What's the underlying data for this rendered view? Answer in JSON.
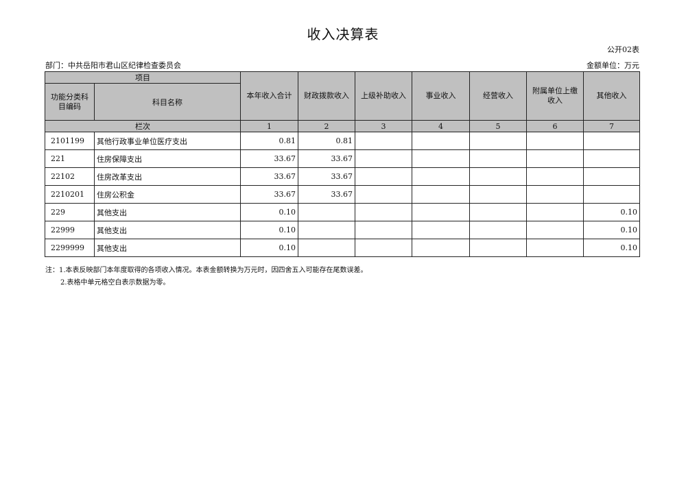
{
  "title": "收入决算表",
  "form_no": "公开02表",
  "department": "部门：中共岳阳市君山区纪律检查委员会",
  "unit": "金额单位：万元",
  "header": {
    "item": "项目",
    "code": "功能分类科目编码",
    "name": "科目名称",
    "column_index": "栏次",
    "columns": [
      "本年收入合计",
      "财政拨款收入",
      "上级补助收入",
      "事业收入",
      "经营收入",
      "附属单位上缴收入",
      "其他收入"
    ],
    "indices": [
      "1",
      "2",
      "3",
      "4",
      "5",
      "6",
      "7"
    ]
  },
  "rows": [
    {
      "code": "2101199",
      "name": "其他行政事业单位医疗支出",
      "values": [
        "0.81",
        "0.81",
        "",
        "",
        "",
        "",
        ""
      ]
    },
    {
      "code": "221",
      "name": "住房保障支出",
      "values": [
        "33.67",
        "33.67",
        "",
        "",
        "",
        "",
        ""
      ]
    },
    {
      "code": "22102",
      "name": "住房改革支出",
      "values": [
        "33.67",
        "33.67",
        "",
        "",
        "",
        "",
        ""
      ]
    },
    {
      "code": "2210201",
      "name": "住房公积金",
      "values": [
        "33.67",
        "33.67",
        "",
        "",
        "",
        "",
        ""
      ]
    },
    {
      "code": "229",
      "name": "其他支出",
      "values": [
        "0.10",
        "",
        "",
        "",
        "",
        "",
        "0.10"
      ]
    },
    {
      "code": "22999",
      "name": "其他支出",
      "values": [
        "0.10",
        "",
        "",
        "",
        "",
        "",
        "0.10"
      ]
    },
    {
      "code": "2299999",
      "name": "其他支出",
      "values": [
        "0.10",
        "",
        "",
        "",
        "",
        "",
        "0.10"
      ]
    }
  ],
  "notes": [
    "注：1.本表反映部门本年度取得的各项收入情况。本表金额转换为万元时，因四舍五入可能存在尾数误差。",
    "2.表格中单元格空白表示数据为零。"
  ]
}
